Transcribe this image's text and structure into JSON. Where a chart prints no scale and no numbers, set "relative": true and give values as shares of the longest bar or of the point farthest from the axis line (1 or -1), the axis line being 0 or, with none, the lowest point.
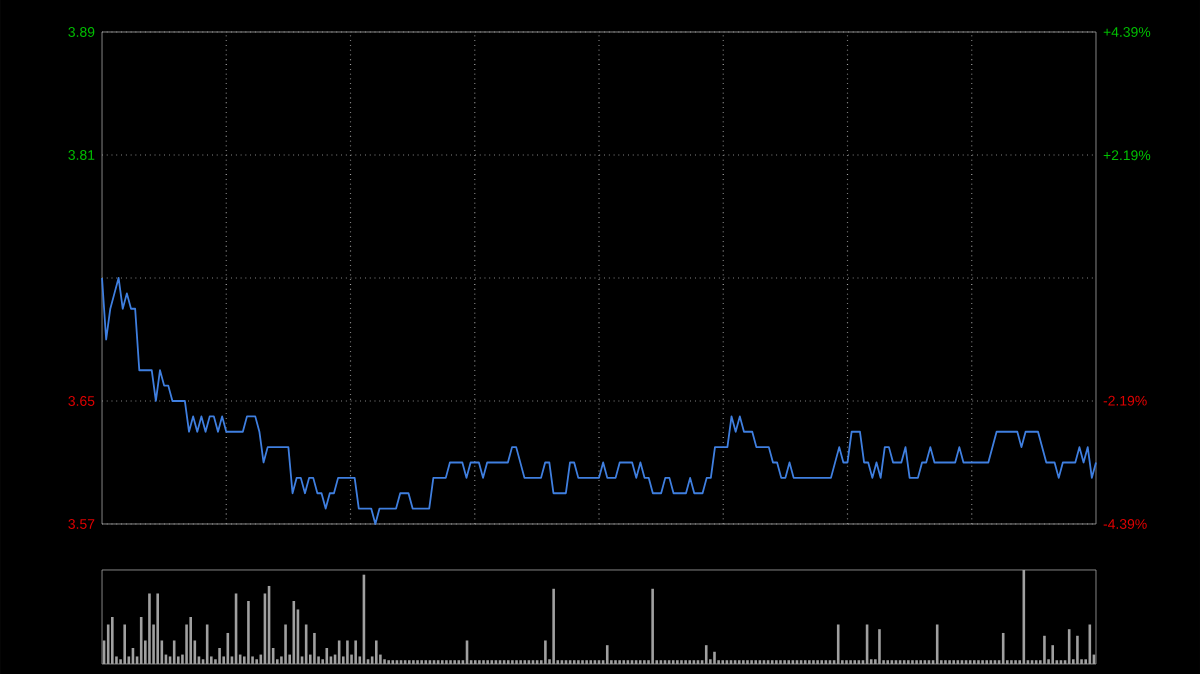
{
  "chart_data": [
    {
      "type": "line",
      "color": "#3f7fe0",
      "categories": [
        null,
        null,
        null,
        null,
        null,
        null,
        null,
        null,
        null,
        null,
        null,
        null,
        null,
        null,
        null,
        null,
        null,
        null,
        null,
        null,
        null,
        null,
        null,
        null,
        null,
        null,
        null,
        null,
        null,
        null,
        null,
        null,
        null,
        null,
        null,
        null,
        null,
        null,
        null,
        null,
        null,
        null,
        null,
        null,
        null,
        null,
        null,
        null,
        null,
        null,
        null,
        null,
        null,
        null,
        null,
        null,
        null,
        null,
        null,
        null,
        null,
        null,
        null,
        null,
        null,
        null,
        null,
        null,
        null,
        null,
        null,
        null,
        null,
        null,
        null,
        null,
        null,
        null,
        null,
        null,
        null,
        null,
        null,
        null,
        null,
        null,
        null,
        null,
        null,
        null,
        null,
        null,
        null,
        null,
        null,
        null,
        null,
        null,
        null,
        null,
        null,
        null,
        null,
        null,
        null,
        null,
        null,
        null,
        null,
        null,
        null,
        null,
        null,
        null,
        null,
        null,
        null,
        null,
        null,
        null,
        null,
        null,
        null,
        null,
        null,
        null,
        null,
        null,
        null,
        null,
        null,
        null,
        null,
        null,
        null,
        null,
        null,
        null,
        null,
        null,
        null,
        null,
        null,
        null,
        null,
        null,
        null,
        null,
        null,
        null,
        null,
        null,
        null,
        null,
        null,
        null,
        null,
        null,
        null,
        null,
        null,
        null,
        null,
        null,
        null,
        null,
        null,
        null,
        null,
        null,
        null,
        null,
        null,
        null,
        null,
        null,
        null,
        null,
        null,
        null,
        null,
        null,
        null,
        null,
        null,
        null,
        null,
        null,
        null,
        null,
        null,
        null,
        null,
        null,
        null,
        null,
        null,
        null,
        null,
        null,
        null,
        null,
        null,
        null,
        null,
        null,
        null,
        null,
        null,
        null,
        null,
        null,
        null,
        null,
        null,
        null,
        null,
        null,
        null,
        null,
        null,
        null,
        null,
        null,
        null,
        null,
        null,
        null,
        null,
        null,
        null,
        null,
        null,
        null,
        null,
        null,
        null,
        null,
        null,
        null,
        null
      ],
      "values": [
        3.73,
        3.69,
        3.71,
        3.72,
        3.73,
        3.71,
        3.72,
        3.71,
        3.71,
        3.67,
        3.67,
        3.67,
        3.67,
        3.65,
        3.67,
        3.66,
        3.66,
        3.65,
        3.65,
        3.65,
        3.65,
        3.63,
        3.64,
        3.63,
        3.64,
        3.63,
        3.64,
        3.64,
        3.63,
        3.64,
        3.63,
        3.63,
        3.63,
        3.63,
        3.63,
        3.64,
        3.64,
        3.64,
        3.63,
        3.61,
        3.62,
        3.62,
        3.62,
        3.62,
        3.62,
        3.62,
        3.59,
        3.6,
        3.6,
        3.59,
        3.6,
        3.6,
        3.59,
        3.59,
        3.58,
        3.59,
        3.59,
        3.6,
        3.6,
        3.6,
        3.6,
        3.6,
        3.58,
        3.58,
        3.58,
        3.58,
        3.57,
        3.58,
        3.58,
        3.58,
        3.58,
        3.58,
        3.59,
        3.59,
        3.59,
        3.58,
        3.58,
        3.58,
        3.58,
        3.58,
        3.6,
        3.6,
        3.6,
        3.6,
        3.61,
        3.61,
        3.61,
        3.61,
        3.6,
        3.61,
        3.61,
        3.61,
        3.6,
        3.61,
        3.61,
        3.61,
        3.61,
        3.61,
        3.61,
        3.62,
        3.62,
        3.61,
        3.6,
        3.6,
        3.6,
        3.6,
        3.6,
        3.61,
        3.61,
        3.59,
        3.59,
        3.59,
        3.59,
        3.61,
        3.61,
        3.6,
        3.6,
        3.6,
        3.6,
        3.6,
        3.6,
        3.61,
        3.6,
        3.6,
        3.6,
        3.61,
        3.61,
        3.61,
        3.61,
        3.6,
        3.61,
        3.6,
        3.6,
        3.59,
        3.59,
        3.59,
        3.6,
        3.6,
        3.59,
        3.59,
        3.59,
        3.59,
        3.6,
        3.59,
        3.59,
        3.59,
        3.6,
        3.6,
        3.62,
        3.62,
        3.62,
        3.62,
        3.64,
        3.63,
        3.64,
        3.63,
        3.63,
        3.63,
        3.62,
        3.62,
        3.62,
        3.62,
        3.61,
        3.61,
        3.6,
        3.6,
        3.61,
        3.6,
        3.6,
        3.6,
        3.6,
        3.6,
        3.6,
        3.6,
        3.6,
        3.6,
        3.6,
        3.61,
        3.62,
        3.61,
        3.61,
        3.63,
        3.63,
        3.63,
        3.61,
        3.61,
        3.6,
        3.61,
        3.6,
        3.62,
        3.62,
        3.61,
        3.61,
        3.61,
        3.62,
        3.6,
        3.6,
        3.6,
        3.61,
        3.61,
        3.62,
        3.61,
        3.61,
        3.61,
        3.61,
        3.61,
        3.61,
        3.62,
        3.61,
        3.61,
        3.61,
        3.61,
        3.61,
        3.61,
        3.61,
        3.62,
        3.63,
        3.63,
        3.63,
        3.63,
        3.63,
        3.63,
        3.62,
        3.63,
        3.63,
        3.63,
        3.63,
        3.62,
        3.61,
        3.61,
        3.61,
        3.6,
        3.61,
        3.61,
        3.61,
        3.61,
        3.62,
        3.61,
        3.62,
        3.6,
        3.61
      ],
      "ylim": [
        3.57,
        3.89
      ],
      "yticks": [
        {
          "value": 3.57,
          "label": "3.57"
        },
        {
          "value": 3.65,
          "label": "3.65"
        },
        {
          "value": 3.73,
          "label": null
        },
        {
          "value": 3.81,
          "label": "3.81"
        },
        {
          "value": 3.89,
          "label": "3.89"
        }
      ],
      "y2lim": [
        -4.39,
        4.39
      ],
      "y2ticks": [
        {
          "value": -4.39,
          "label": "-4.39%"
        },
        {
          "value": -2.19,
          "label": "-2.19%"
        },
        {
          "value": 0,
          "label": null
        },
        {
          "value": 2.19,
          "label": "+2.19%"
        },
        {
          "value": 4.39,
          "label": "+4.39%"
        }
      ],
      "grid": true,
      "tick_labels": "y"
    },
    {
      "type": "bar",
      "color": "#a0a0a0",
      "relative": true,
      "categories": [
        null,
        null,
        null,
        null,
        null,
        null,
        null,
        null,
        null,
        null,
        null,
        null,
        null,
        null,
        null,
        null,
        null,
        null,
        null,
        null,
        null,
        null,
        null,
        null,
        null,
        null,
        null,
        null,
        null,
        null,
        null,
        null,
        null,
        null,
        null,
        null,
        null,
        null,
        null,
        null,
        null,
        null,
        null,
        null,
        null,
        null,
        null,
        null,
        null,
        null,
        null,
        null,
        null,
        null,
        null,
        null,
        null,
        null,
        null,
        null,
        null,
        null,
        null,
        null,
        null,
        null,
        null,
        null,
        null,
        null,
        null,
        null,
        null,
        null,
        null,
        null,
        null,
        null,
        null,
        null,
        null,
        null,
        null,
        null,
        null,
        null,
        null,
        null,
        null,
        null,
        null,
        null,
        null,
        null,
        null,
        null,
        null,
        null,
        null,
        null,
        null,
        null,
        null,
        null,
        null,
        null,
        null,
        null,
        null,
        null,
        null,
        null,
        null,
        null,
        null,
        null,
        null,
        null,
        null,
        null,
        null,
        null,
        null,
        null,
        null,
        null,
        null,
        null,
        null,
        null,
        null,
        null,
        null,
        null,
        null,
        null,
        null,
        null,
        null,
        null,
        null,
        null,
        null,
        null,
        null,
        null,
        null,
        null,
        null,
        null,
        null,
        null,
        null,
        null,
        null,
        null,
        null,
        null,
        null,
        null,
        null,
        null,
        null,
        null,
        null,
        null,
        null,
        null,
        null,
        null,
        null,
        null,
        null,
        null,
        null,
        null,
        null,
        null,
        null,
        null,
        null,
        null,
        null,
        null,
        null,
        null,
        null,
        null,
        null,
        null,
        null,
        null,
        null,
        null,
        null,
        null,
        null,
        null,
        null,
        null,
        null,
        null,
        null,
        null,
        null,
        null,
        null,
        null,
        null,
        null,
        null,
        null,
        null,
        null,
        null,
        null,
        null,
        null,
        null,
        null,
        null,
        null,
        null,
        null,
        null,
        null,
        null,
        null,
        null,
        null,
        null,
        null,
        null,
        null,
        null,
        null,
        null,
        null,
        null,
        null,
        null
      ],
      "values": [
        0.25,
        0.42,
        0.5,
        0.08,
        0.05,
        0.42,
        0.08,
        0.17,
        0.08,
        0.5,
        0.25,
        0.75,
        0.42,
        0.75,
        0.25,
        0.1,
        0.08,
        0.25,
        0.08,
        0.1,
        0.42,
        0.5,
        0.25,
        0.08,
        0.05,
        0.42,
        0.08,
        0.05,
        0.17,
        0.08,
        0.33,
        0.08,
        0.75,
        0.1,
        0.08,
        0.67,
        0.08,
        0.05,
        0.1,
        0.75,
        0.83,
        0.17,
        0.05,
        0.08,
        0.42,
        0.1,
        0.67,
        0.58,
        0.08,
        0.42,
        0.1,
        0.33,
        0.08,
        0.05,
        0.17,
        0.08,
        0.1,
        0.25,
        0.08,
        0.25,
        0.1,
        0.25,
        0.08,
        0.95,
        0.05,
        0.08,
        0.25,
        0.1,
        0.05,
        0.04,
        0.04,
        0.04,
        0.04,
        0.04,
        0.04,
        0.04,
        0.04,
        0.04,
        0.04,
        0.04,
        0.04,
        0.04,
        0.04,
        0.04,
        0.04,
        0.04,
        0.04,
        0.04,
        0.25,
        0.04,
        0.04,
        0.04,
        0.04,
        0.04,
        0.04,
        0.04,
        0.04,
        0.04,
        0.04,
        0.04,
        0.04,
        0.04,
        0.04,
        0.04,
        0.04,
        0.04,
        0.04,
        0.25,
        0.05,
        0.8,
        0.04,
        0.04,
        0.04,
        0.04,
        0.04,
        0.04,
        0.04,
        0.04,
        0.04,
        0.04,
        0.04,
        0.04,
        0.2,
        0.04,
        0.04,
        0.04,
        0.04,
        0.04,
        0.04,
        0.04,
        0.04,
        0.04,
        0.04,
        0.8,
        0.04,
        0.04,
        0.04,
        0.04,
        0.04,
        0.04,
        0.04,
        0.04,
        0.04,
        0.04,
        0.04,
        0.04,
        0.2,
        0.05,
        0.13,
        0.04,
        0.04,
        0.04,
        0.04,
        0.04,
        0.04,
        0.04,
        0.04,
        0.04,
        0.04,
        0.04,
        0.04,
        0.04,
        0.04,
        0.04,
        0.04,
        0.04,
        0.04,
        0.04,
        0.04,
        0.04,
        0.04,
        0.04,
        0.04,
        0.04,
        0.04,
        0.04,
        0.04,
        0.04,
        0.42,
        0.04,
        0.04,
        0.04,
        0.04,
        0.04,
        0.04,
        0.42,
        0.05,
        0.05,
        0.37,
        0.04,
        0.04,
        0.04,
        0.04,
        0.04,
        0.04,
        0.04,
        0.04,
        0.04,
        0.04,
        0.04,
        0.04,
        0.04,
        0.42,
        0.04,
        0.04,
        0.04,
        0.04,
        0.04,
        0.04,
        0.04,
        0.04,
        0.04,
        0.04,
        0.04,
        0.04,
        0.04,
        0.04,
        0.04,
        0.33,
        0.04,
        0.04,
        0.04,
        0.04,
        1,
        0.04,
        0.04,
        0.04,
        0.04,
        0.3,
        0.05,
        0.2,
        0.04,
        0.04,
        0.04,
        0.37,
        0.05,
        0.3,
        0.05,
        0.05,
        0.42,
        0.1
      ],
      "tick_labels": false
    }
  ]
}
